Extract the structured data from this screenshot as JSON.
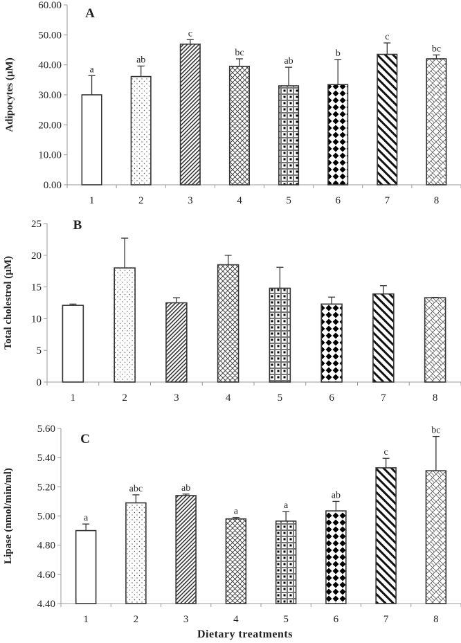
{
  "x_axis_title": "Dietary treatments",
  "chart_data": [
    {
      "type": "bar",
      "panel": "A",
      "title": "A",
      "xlabel": "",
      "ylabel": "Adipocytes (µM)",
      "categories": [
        "1",
        "2",
        "3",
        "4",
        "5",
        "6",
        "7",
        "8"
      ],
      "values": [
        30.0,
        36.1,
        46.9,
        39.5,
        33.0,
        33.4,
        43.5,
        42.0
      ],
      "error_upper": [
        36.4,
        39.6,
        48.4,
        42.0,
        39.2,
        41.8,
        47.3,
        43.3
      ],
      "significance": [
        "a",
        "ab",
        "c",
        "bc",
        "ab",
        "b",
        "c",
        "bc"
      ],
      "ylim": [
        0,
        60
      ],
      "yticks": [
        0,
        10,
        20,
        30,
        40,
        50,
        60
      ],
      "ytick_labels": [
        "0.00",
        "10.00",
        "20.00",
        "30.00",
        "40.00",
        "50.00",
        "60.00"
      ],
      "grid": false,
      "legend": "none"
    },
    {
      "type": "bar",
      "panel": "B",
      "title": "B",
      "xlabel": "",
      "ylabel": "Total cholestrol (µM)",
      "categories": [
        "1",
        "2",
        "3",
        "4",
        "5",
        "6",
        "7",
        "8"
      ],
      "values": [
        12.1,
        18.0,
        12.5,
        18.5,
        14.8,
        12.3,
        13.9,
        13.3
      ],
      "error_upper": [
        12.3,
        22.7,
        13.3,
        20.0,
        18.1,
        13.4,
        15.2,
        13.35
      ],
      "significance": [
        "",
        "",
        "",
        "",
        "",
        "",
        "",
        ""
      ],
      "ylim": [
        0,
        25
      ],
      "yticks": [
        0,
        5,
        10,
        15,
        20,
        25
      ],
      "ytick_labels": [
        "0",
        "5",
        "10",
        "15",
        "20",
        "25"
      ],
      "grid": false,
      "legend": "none"
    },
    {
      "type": "bar",
      "panel": "C",
      "title": "C",
      "xlabel": "Dietary treatments",
      "ylabel": "Lipase (nmol/min/ml)",
      "categories": [
        "1",
        "2",
        "3",
        "4",
        "5",
        "6",
        "7",
        "8"
      ],
      "values": [
        4.9,
        5.09,
        5.14,
        4.98,
        4.965,
        5.035,
        5.33,
        5.31
      ],
      "error_upper": [
        4.945,
        5.145,
        5.15,
        4.99,
        5.03,
        5.1,
        5.395,
        5.545
      ],
      "significance": [
        "a",
        "abc",
        "ab",
        "a",
        "a",
        "ab",
        "c",
        "bc"
      ],
      "ylim": [
        4.4,
        5.6
      ],
      "yticks": [
        4.4,
        4.6,
        4.8,
        5.0,
        5.2,
        5.4,
        5.6
      ],
      "ytick_labels": [
        "4.40",
        "4.60",
        "4.80",
        "5.00",
        "5.20",
        "5.40",
        "5.60"
      ],
      "grid": false,
      "legend": "none"
    }
  ],
  "bar_patterns": [
    "blank",
    "dots",
    "fine-diagonal",
    "crosshatch",
    "checker",
    "diamonds",
    "bold-diagonal",
    "brick"
  ]
}
